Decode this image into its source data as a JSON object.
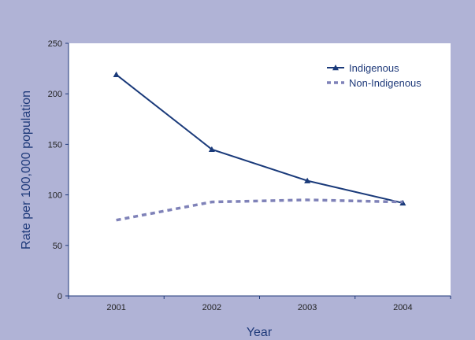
{
  "colors": {
    "frame_background": "#b0b3d6",
    "plot_background": "#ffffff",
    "axis": "#1f3a7a",
    "indigenous_series": "#1a3a7a",
    "non_indigenous_series": "#7f82b8"
  },
  "chart_data": {
    "type": "line",
    "title": "",
    "xlabel": "Year",
    "ylabel": "Rate per 100,000 population",
    "categories": [
      "2001",
      "2002",
      "2003",
      "2004"
    ],
    "ylim": [
      0,
      250
    ],
    "yticks": [
      0,
      50,
      100,
      150,
      200,
      250
    ],
    "grid": false,
    "legend_position": "top-right",
    "series": [
      {
        "name": "Indigenous",
        "values": [
          219,
          145,
          114,
          92
        ],
        "marker": "triangle",
        "line_style": "solid",
        "color": "#1a3a7a"
      },
      {
        "name": "Non-Indigenous",
        "values": [
          75,
          93,
          95,
          93
        ],
        "marker": "none",
        "line_style": "dashed",
        "color": "#7f82b8"
      }
    ]
  }
}
